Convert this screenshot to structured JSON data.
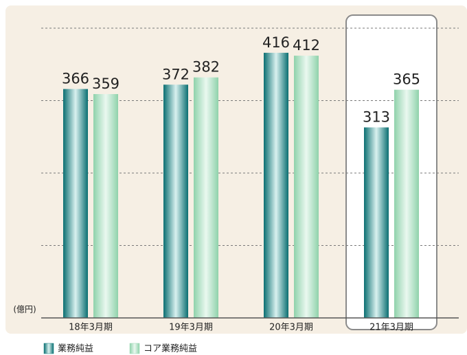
{
  "chart_data": {
    "type": "bar",
    "unit_label": "(億円)",
    "categories": [
      "18年3月期",
      "19年3月期",
      "20年3月期",
      "21年3月期"
    ],
    "series": [
      {
        "name": "業務純益",
        "color": "#137f80",
        "values": [
          366,
          372,
          416,
          313
        ]
      },
      {
        "name": "コア業務純益",
        "color": "#9ed8b6",
        "values": [
          359,
          382,
          412,
          365
        ]
      }
    ],
    "ylim": [
      50,
      450
    ],
    "yticks": [
      150,
      250,
      350,
      450
    ],
    "grid": true,
    "highlight_category": 3
  }
}
